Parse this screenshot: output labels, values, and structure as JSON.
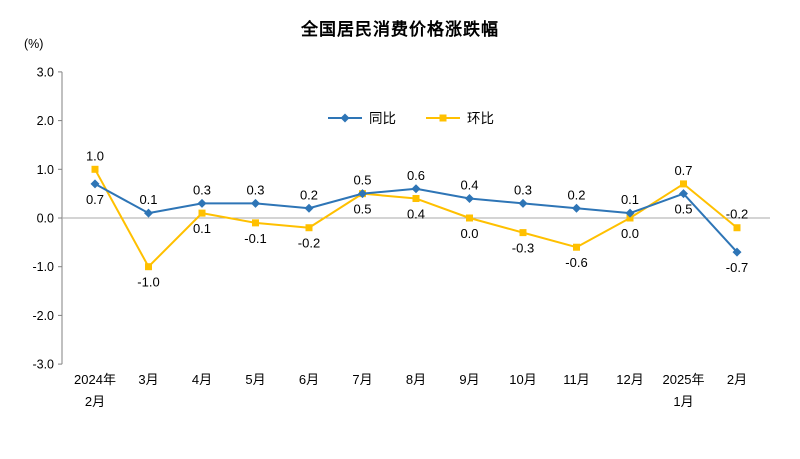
{
  "chart_data": {
    "type": "line",
    "title": "全国居民消费价格涨跌幅",
    "unit": "(%)",
    "xlabel": "",
    "ylabel": "(%)",
    "ylim": [
      -3.0,
      3.0
    ],
    "ytick_step": 1.0,
    "grid": false,
    "legend_position": "top-center",
    "axis_color": "#808080",
    "zero_line_color": "#A9A9A9",
    "label_color": "#000000",
    "categories": [
      "2024年\n2月",
      "3月",
      "4月",
      "5月",
      "6月",
      "7月",
      "8月",
      "9月",
      "10月",
      "11月",
      "12月",
      "2025年\n1月",
      "2月"
    ],
    "series": [
      {
        "name": "同比",
        "marker": "diamond",
        "color": "#2E75B6",
        "values": [
          0.7,
          0.1,
          0.3,
          0.3,
          0.2,
          0.5,
          0.6,
          0.4,
          0.3,
          0.2,
          0.1,
          0.5,
          -0.7
        ]
      },
      {
        "name": "环比",
        "marker": "square",
        "color": "#FFC000",
        "values": [
          1.0,
          -1.0,
          0.1,
          -0.1,
          -0.2,
          0.5,
          0.4,
          0.0,
          -0.3,
          -0.6,
          0.0,
          0.7,
          -0.2
        ]
      }
    ]
  }
}
